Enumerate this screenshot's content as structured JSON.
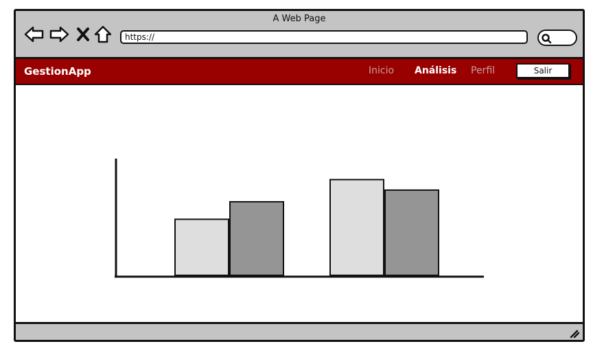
{
  "window": {
    "title": "A Web Page"
  },
  "browser": {
    "url": "https://",
    "icons": [
      "back-arrow-icon",
      "forward-arrow-icon",
      "close-x-icon",
      "home-icon",
      "search-icon",
      "resize-grip-icon"
    ]
  },
  "appbar": {
    "brand": "GestionApp",
    "nav": [
      {
        "label": "Inicio",
        "active": false
      },
      {
        "label": "Análisis",
        "active": true
      },
      {
        "label": "Perfil",
        "active": false
      }
    ],
    "logout_label": "Salir",
    "colors": {
      "background": "#990000",
      "active": "#ffffff",
      "inactive": "#c9a0a0"
    }
  },
  "chart_data": {
    "type": "bar",
    "categories": [
      "",
      ""
    ],
    "series": [
      {
        "values": [
          48,
          82
        ],
        "color": "#dedede"
      },
      {
        "values": [
          63,
          73
        ],
        "color": "#959595"
      }
    ],
    "ylim": [
      0,
      100
    ],
    "grid": false,
    "legend": "none",
    "title": "",
    "xlabel": "",
    "ylabel": ""
  }
}
